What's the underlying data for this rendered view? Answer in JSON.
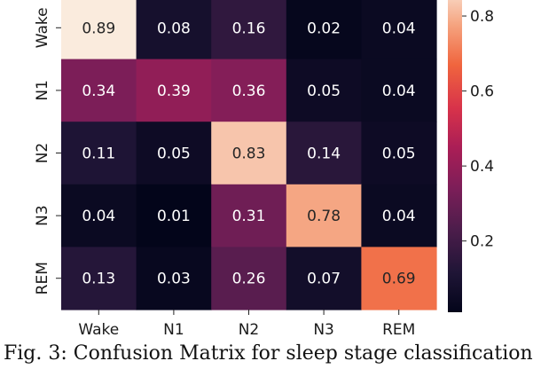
{
  "caption": "Fig. 3: Confusion Matrix for sleep stage classification",
  "chart_data": {
    "type": "heatmap",
    "title": "",
    "xlabel": "",
    "ylabel": "",
    "rows": [
      "Wake",
      "N1",
      "N2",
      "N3",
      "REM"
    ],
    "columns": [
      "Wake",
      "N1",
      "N2",
      "N3",
      "REM"
    ],
    "values": [
      [
        0.89,
        0.08,
        0.16,
        0.02,
        0.04
      ],
      [
        0.34,
        0.39,
        0.36,
        0.05,
        0.04
      ],
      [
        0.11,
        0.05,
        0.83,
        0.14,
        0.05
      ],
      [
        0.04,
        0.01,
        0.31,
        0.78,
        0.04
      ],
      [
        0.13,
        0.03,
        0.26,
        0.07,
        0.69
      ]
    ],
    "value_labels": [
      [
        "0.89",
        "0.08",
        "0.16",
        "0.02",
        "0.04"
      ],
      [
        "0.34",
        "0.39",
        "0.36",
        "0.05",
        "0.04"
      ],
      [
        "0.11",
        "0.05",
        "0.83",
        "0.14",
        "0.05"
      ],
      [
        "0.04",
        "0.01",
        "0.31",
        "0.78",
        "0.04"
      ],
      [
        "0.13",
        "0.03",
        "0.26",
        "0.07",
        "0.69"
      ]
    ],
    "colorbar": {
      "colormap": "rocket",
      "range": [
        0.01,
        0.89
      ],
      "ticks": [
        0.2,
        0.4,
        0.6,
        0.8
      ],
      "tick_labels": [
        "0.2",
        "0.4",
        "0.6",
        "0.8"
      ]
    }
  }
}
